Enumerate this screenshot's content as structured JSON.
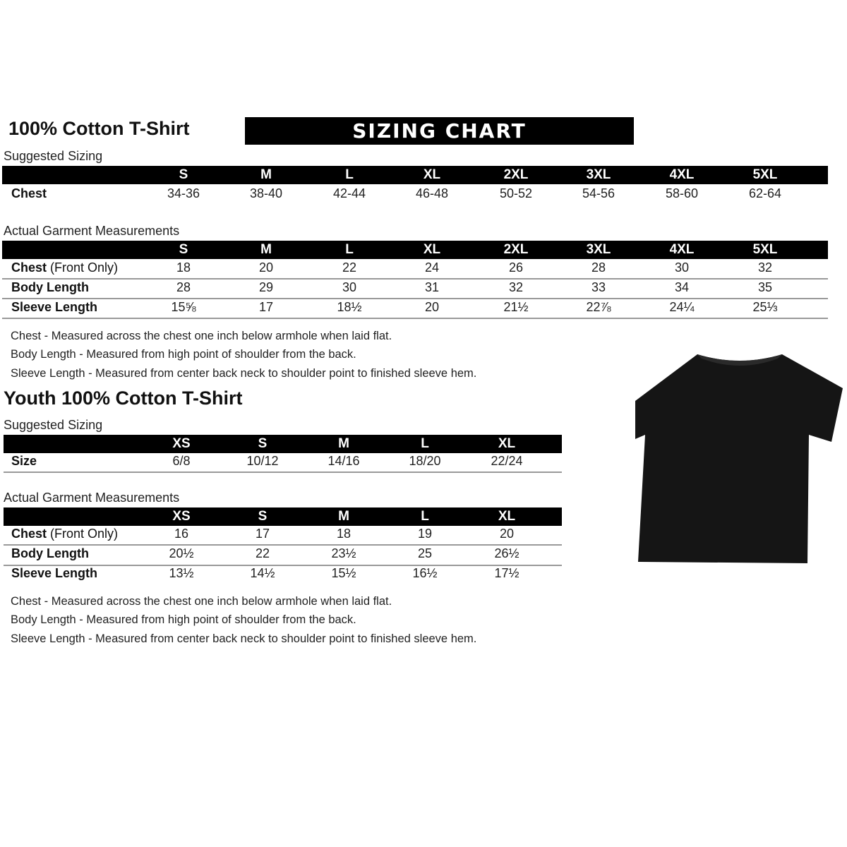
{
  "adult": {
    "title": "100% Cotton T-Shirt",
    "banner": "SIZING CHART",
    "suggested_label": "Suggested Sizing",
    "sizes": [
      "S",
      "M",
      "L",
      "XL",
      "2XL",
      "3XL",
      "4XL",
      "5XL"
    ],
    "suggested_rows": [
      {
        "label": "Chest",
        "values": [
          "34-36",
          "38-40",
          "42-44",
          "46-48",
          "50-52",
          "54-56",
          "58-60",
          "62-64"
        ]
      }
    ],
    "actual_label": "Actual Garment Measurements",
    "actual_rows": [
      {
        "label": "Chest",
        "label_suffix": " (Front Only)",
        "values": [
          "18",
          "20",
          "22",
          "24",
          "26",
          "28",
          "30",
          "32"
        ]
      },
      {
        "label": "Body Length",
        "values": [
          "28",
          "29",
          "30",
          "31",
          "32",
          "33",
          "34",
          "35"
        ]
      },
      {
        "label": "Sleeve Length",
        "values": [
          "15⅝",
          "17",
          "18½",
          "20",
          "21½",
          "22⅞",
          "24¼",
          "25⅓"
        ]
      }
    ],
    "notes": [
      "Chest - Measured across the chest one inch below armhole when laid flat.",
      "Body Length - Measured from high point of shoulder from the back.",
      "Sleeve Length - Measured from center back neck to shoulder point to finished sleeve hem."
    ]
  },
  "youth": {
    "title": "Youth 100% Cotton T-Shirt",
    "suggested_label": "Suggested Sizing",
    "sizes": [
      "XS",
      "S",
      "M",
      "L",
      "XL"
    ],
    "suggested_rows": [
      {
        "label": "Size",
        "values": [
          "6/8",
          "10/12",
          "14/16",
          "18/20",
          "22/24"
        ]
      }
    ],
    "actual_label": "Actual Garment Measurements",
    "actual_rows": [
      {
        "label": "Chest",
        "label_suffix": " (Front Only)",
        "values": [
          "16",
          "17",
          "18",
          "19",
          "20"
        ]
      },
      {
        "label": "Body Length",
        "values": [
          "20½",
          "22",
          "23½",
          "25",
          "26½"
        ]
      },
      {
        "label": "Sleeve Length",
        "values": [
          "13½",
          "14½",
          "15½",
          "16½",
          "17½"
        ]
      }
    ],
    "notes": [
      "Chest - Measured across the chest one inch below armhole when laid flat.",
      "Body Length - Measured from high point of shoulder from the back.",
      "Sleeve Length - Measured from center back neck to shoulder point to finished sleeve hem."
    ]
  },
  "image": {
    "icon": "black-t-shirt",
    "color": "#111111"
  }
}
